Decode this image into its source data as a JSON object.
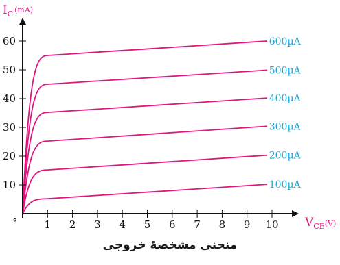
{
  "chart_data": {
    "type": "line",
    "title": "",
    "ylabel": {
      "main": "I",
      "sub": "C",
      "unit": "(mA)"
    },
    "xlabel": {
      "main": "V",
      "sub": "CE",
      "unit": "(V)"
    },
    "origin_label": "°",
    "xlim": [
      0,
      10.7
    ],
    "ylim": [
      0,
      68
    ],
    "x_ticks": [
      1,
      2,
      3,
      4,
      5,
      6,
      7,
      8,
      9,
      10
    ],
    "y_ticks": [
      10,
      20,
      30,
      40,
      50,
      60
    ],
    "grid": false,
    "line_color": "#e0157f",
    "label_color": "#1ba8d6",
    "axis_color": "#111111",
    "series": [
      {
        "name": "100µA",
        "knee": [
          1.0,
          5.2
        ],
        "x": [
          0,
          0.5,
          1.0,
          9.8
        ],
        "y": [
          0,
          4.3,
          5.2,
          10.2
        ]
      },
      {
        "name": "200µA",
        "knee": [
          1.0,
          15.2
        ],
        "x": [
          0,
          0.5,
          1.0,
          9.8
        ],
        "y": [
          0,
          12.5,
          15.2,
          20.3
        ]
      },
      {
        "name": "300µA",
        "knee": [
          1.0,
          25.2
        ],
        "x": [
          0,
          0.5,
          1.0,
          9.8
        ],
        "y": [
          0,
          20.8,
          25.2,
          30.4
        ]
      },
      {
        "name": "400µA",
        "knee": [
          1.0,
          35.2
        ],
        "x": [
          0,
          0.5,
          1.0,
          9.8
        ],
        "y": [
          0,
          29.0,
          35.2,
          40.2
        ]
      },
      {
        "name": "500µA",
        "knee": [
          1.0,
          45.0
        ],
        "x": [
          0,
          0.5,
          1.0,
          9.8
        ],
        "y": [
          0,
          37.5,
          45.0,
          49.9
        ]
      },
      {
        "name": "600µA",
        "knee": [
          1.0,
          55.0
        ],
        "x": [
          0,
          0.5,
          1.0,
          9.8
        ],
        "y": [
          0,
          46.0,
          55.0,
          60.0
        ]
      }
    ]
  },
  "caption": "منحنی مشخصهٔ خروجی"
}
